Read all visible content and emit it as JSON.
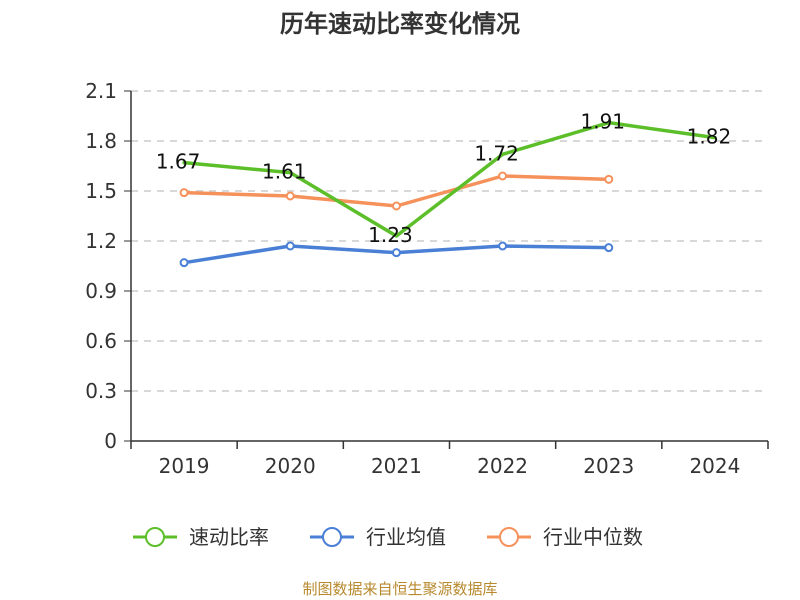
{
  "chart_data": {
    "type": "line",
    "title": "历年速动比率变化情况",
    "categories": [
      "2019",
      "2020",
      "2021",
      "2022",
      "2023",
      "2024"
    ],
    "ylim": [
      0,
      2.1
    ],
    "yticks": [
      "0",
      "0.3",
      "0.6",
      "0.9",
      "1.2",
      "1.5",
      "1.8",
      "2.1"
    ],
    "grid": true,
    "legend_position": "bottom",
    "series": [
      {
        "name": "速动比率",
        "color": "#5cbf2a",
        "values": [
          1.67,
          1.61,
          1.23,
          1.72,
          1.91,
          1.82
        ],
        "data_labels": [
          "1.67",
          "1.61",
          "1.23",
          "1.72",
          "1.91",
          "1.82"
        ]
      },
      {
        "name": "行业均值",
        "color": "#4a7fd6",
        "values": [
          1.07,
          1.17,
          1.13,
          1.17,
          1.16,
          null
        ]
      },
      {
        "name": "行业中位数",
        "color": "#f5915a",
        "values": [
          1.49,
          1.47,
          1.41,
          1.59,
          1.57,
          null
        ]
      }
    ],
    "source": "制图数据来自恒生聚源数据库"
  }
}
